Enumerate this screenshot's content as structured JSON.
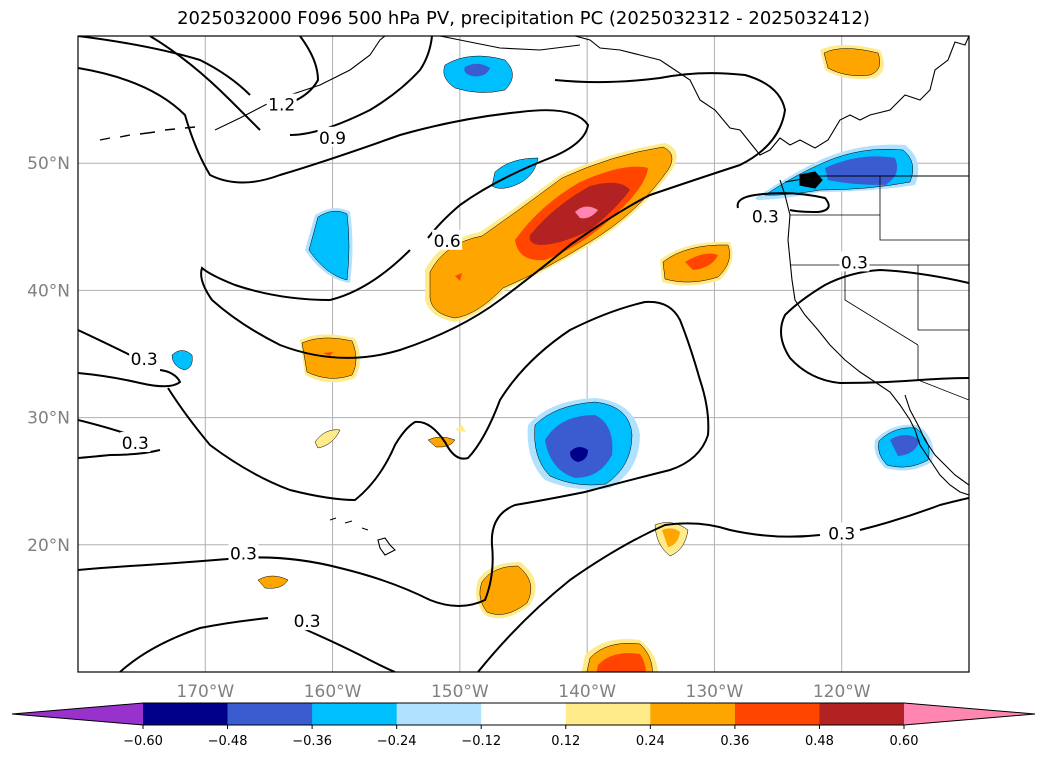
{
  "title": "2025032000 F096 500 hPa PV, precipitation PC (2025032312 - 2025032412)",
  "map": {
    "lon_range": [
      -180,
      -110
    ],
    "lat_range": [
      10,
      60
    ],
    "lat_ticks": [
      {
        "value": 20,
        "label": "20°N"
      },
      {
        "value": 30,
        "label": "30°N"
      },
      {
        "value": 40,
        "label": "40°N"
      },
      {
        "value": 50,
        "label": "50°N"
      }
    ],
    "lon_ticks": [
      {
        "value": -170,
        "label": "170°W"
      },
      {
        "value": -160,
        "label": "160°W"
      },
      {
        "value": -150,
        "label": "150°W"
      },
      {
        "value": -140,
        "label": "140°W"
      },
      {
        "value": -130,
        "label": "130°W"
      },
      {
        "value": -120,
        "label": "120°W"
      }
    ],
    "grid": true
  },
  "pv_contours": {
    "levels": [
      0.3,
      0.6,
      0.9,
      1.2
    ],
    "labels": [
      {
        "text": "1.2",
        "lon": -164.0,
        "lat": 54.6
      },
      {
        "text": "0.9",
        "lon": -160.0,
        "lat": 52.0
      },
      {
        "text": "0.6",
        "lon": -151.0,
        "lat": 43.9
      },
      {
        "text": "0.3",
        "lon": -174.8,
        "lat": 34.6
      },
      {
        "text": "0.3",
        "lon": -175.5,
        "lat": 28.0
      },
      {
        "text": "0.3",
        "lon": -167.0,
        "lat": 19.3
      },
      {
        "text": "0.3",
        "lon": -162.0,
        "lat": 14.0
      },
      {
        "text": "0.3",
        "lon": -126.0,
        "lat": 45.8
      },
      {
        "text": "0.3",
        "lon": -119.0,
        "lat": 42.2
      },
      {
        "text": "0.3",
        "lon": -120.0,
        "lat": 20.9
      }
    ]
  },
  "colorbar": {
    "levels": [
      "−0.60",
      "−0.48",
      "−0.36",
      "−0.24",
      "−0.12",
      "0.12",
      "0.24",
      "0.36",
      "0.48",
      "0.60"
    ],
    "colors": [
      "#9932cc",
      "#00008b",
      "#3b5bd1",
      "#00bfff",
      "#b0e2ff",
      "#ffffff",
      "#ffeb8a",
      "#ffa500",
      "#ff4500",
      "#b22222",
      "#ff86b0"
    ],
    "extend": "both"
  }
}
